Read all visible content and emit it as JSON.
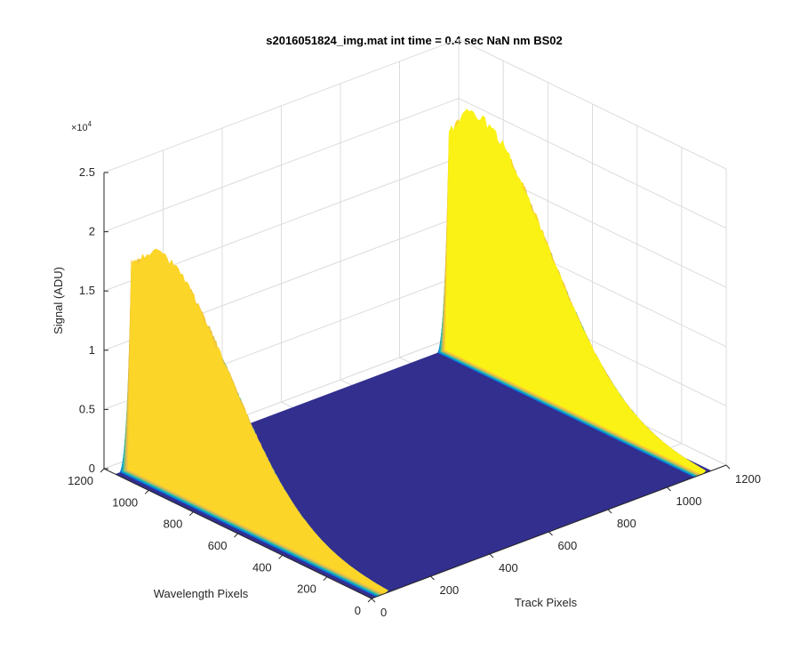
{
  "chart_data": {
    "type": "surface",
    "title": "s2016051824_img.mat int time = 0.4 sec  NaN nm BS02",
    "xlabel": "Track Pixels",
    "ylabel": "Wavelength Pixels",
    "zlabel": "Signal (ADU)",
    "z_exponent_label": "×10",
    "z_exponent_power": "4",
    "xlim": [
      0,
      1200
    ],
    "ylim": [
      0,
      1200
    ],
    "zlim": [
      0,
      25000
    ],
    "x_ticks": [
      "0",
      "200",
      "400",
      "600",
      "800",
      "1000",
      "1200"
    ],
    "y_ticks": [
      "0",
      "200",
      "400",
      "600",
      "800",
      "1000",
      "1200"
    ],
    "z_ticks": [
      "0",
      "0.5",
      "1",
      "1.5",
      "2",
      "2.5"
    ],
    "grid": true,
    "colormap": "parula",
    "track_band_centers": [
      55,
      1130
    ],
    "track_band_halfwidth": 40,
    "peak_signal_by_band": [
      19500,
      21000
    ],
    "peak_wavelength_pixel": 1050,
    "wavelength_pixel_range": [
      0,
      1150
    ],
    "track_pixel_range": [
      0,
      1150
    ]
  }
}
